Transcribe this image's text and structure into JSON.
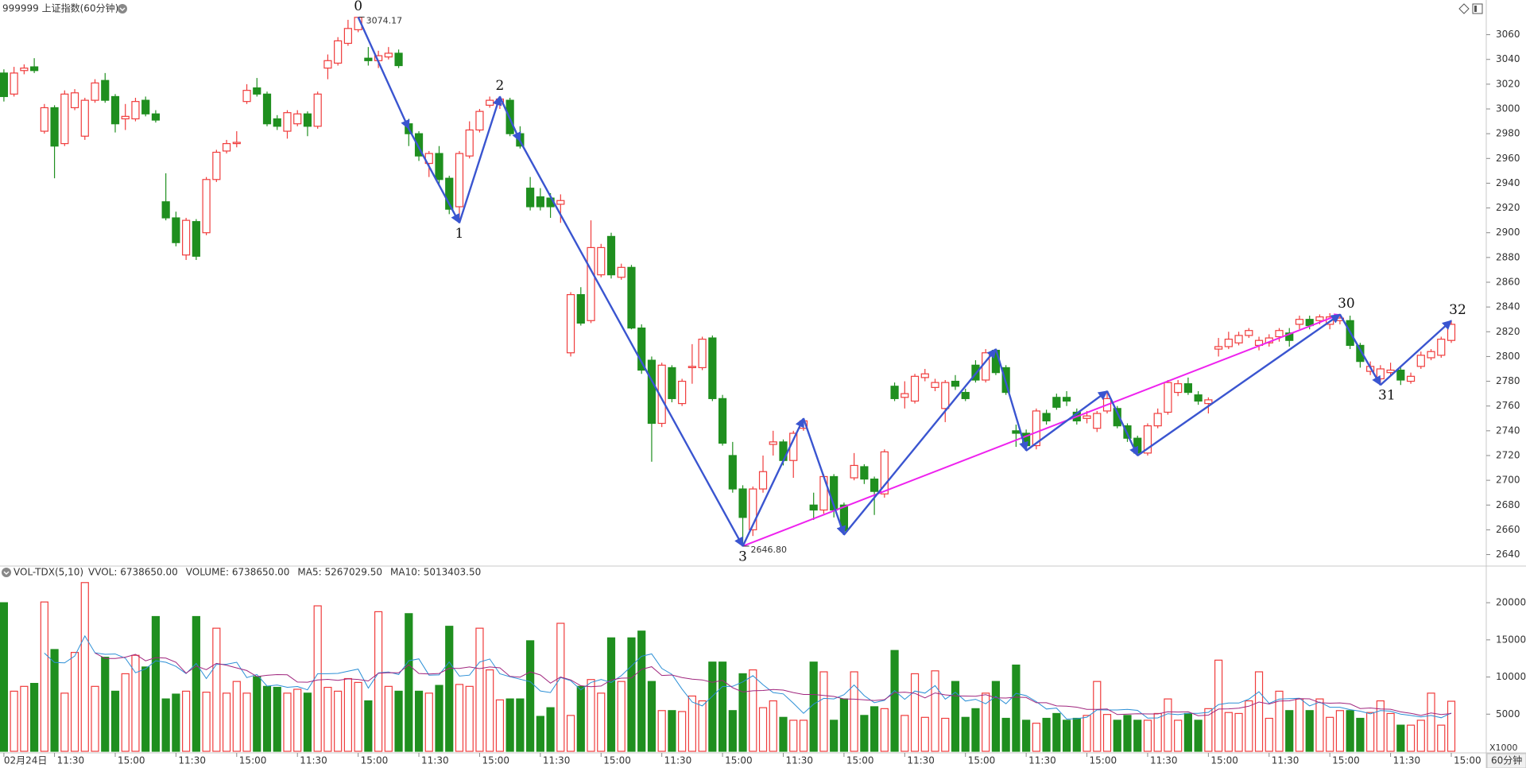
{
  "chart_data": [
    {
      "type": "candlestick",
      "title": "999999 上证指数(60分钟)",
      "up_color": "#f03c3c",
      "down_color": "#1f8f1f",
      "ylim": [
        2632,
        3088
      ],
      "yticks": [
        2640,
        2660,
        2680,
        2700,
        2720,
        2740,
        2760,
        2780,
        2800,
        2820,
        2840,
        2860,
        2880,
        2900,
        2920,
        2940,
        2960,
        2980,
        3000,
        3020,
        3040,
        3060
      ],
      "open": [
        3029,
        3012,
        3031,
        3034,
        2982,
        3001,
        2972,
        3001,
        2978,
        3007,
        3023,
        3010,
        2992,
        2992,
        3007,
        2996,
        2925,
        2912,
        2882,
        2909,
        2900,
        2943,
        2966,
        2972,
        3006,
        3017,
        3012,
        2992,
        2982,
        2988,
        2996,
        2986,
        3033,
        3037,
        3053,
        3064,
        3041,
        3039,
        3042,
        3045,
        2988,
        2980,
        2956,
        2964,
        2944,
        2921,
        2962,
        2983,
        3003,
        3004,
        3007,
        2980,
        2936,
        2929,
        2928,
        2923,
        2803,
        2850,
        2829,
        2866,
        2897,
        2864,
        2872,
        2823,
        2797,
        2746,
        2791,
        2762,
        2791,
        2791,
        2815,
        2766,
        2720,
        2693,
        2660,
        2693,
        2729,
        2731,
        2716,
        2742,
        2680,
        2676,
        2703,
        2680,
        2702,
        2711,
        2701,
        2689,
        2776,
        2767,
        2764,
        2783,
        2775,
        2758,
        2780,
        2771,
        2793,
        2781,
        2805,
        2791,
        2740,
        2738,
        2728,
        2754,
        2767,
        2767,
        2755,
        2750,
        2742,
        2756,
        2758,
        2744,
        2734,
        2722,
        2744,
        2755,
        2771,
        2778,
        2769,
        2762,
        2806,
        2808,
        2811,
        2817,
        2809,
        2811,
        2816,
        2819,
        2826,
        2830,
        2829,
        2826,
        2829,
        2829,
        2809,
        2788,
        2782,
        2787,
        2789,
        2780,
        2792,
        2799,
        2801,
        2813
      ],
      "high": [
        3032,
        3034,
        3036,
        3041,
        3004,
        3003,
        3015,
        3016,
        3009,
        3024,
        3029,
        3012,
        3004,
        3009,
        3010,
        2999,
        2948,
        2917,
        2912,
        2911,
        2945,
        2967,
        2975,
        2982,
        3020,
        3025,
        3014,
        2995,
        2999,
        2999,
        2998,
        3014,
        3044,
        3058,
        3072,
        3074.17,
        3050,
        3047,
        3050,
        3048,
        2992,
        2982,
        2966,
        2970,
        2946,
        2966,
        2990,
        3000,
        3010,
        3010,
        3009,
        2986,
        2945,
        2936,
        2932,
        2931,
        2852,
        2856,
        2910,
        2891,
        2900,
        2875,
        2874,
        2826,
        2800,
        2795,
        2793,
        2782,
        2810,
        2816,
        2817,
        2769,
        2731,
        2696,
        2695,
        2720,
        2740,
        2733,
        2740,
        2750,
        2690,
        2705,
        2705,
        2682,
        2722,
        2713,
        2703,
        2725,
        2779,
        2780,
        2786,
        2790,
        2782,
        2781,
        2785,
        2774,
        2797,
        2806,
        2806,
        2793,
        2745,
        2741,
        2758,
        2757,
        2770,
        2772,
        2758,
        2756,
        2756,
        2772,
        2760,
        2746,
        2736,
        2746,
        2758,
        2781,
        2781,
        2783,
        2772,
        2767,
        2815,
        2820,
        2820,
        2823,
        2816,
        2818,
        2823,
        2823,
        2833,
        2833,
        2834,
        2835,
        2834,
        2833,
        2811,
        2796,
        2793,
        2795,
        2791,
        2787,
        2804,
        2806,
        2816,
        2829
      ],
      "low": [
        3006,
        3010,
        3028,
        3029,
        2980,
        2944,
        2970,
        2999,
        2975,
        3005,
        3005,
        2981,
        2983,
        2990,
        2994,
        2989,
        2910,
        2889,
        2878,
        2878,
        2898,
        2941,
        2964,
        2969,
        3004,
        3010,
        2986,
        2983,
        2976,
        2986,
        2978,
        2984,
        3024,
        3035,
        3051,
        3062,
        3035,
        3033,
        3040,
        3033,
        2970,
        2958,
        2945,
        2938,
        2915,
        2908,
        2960,
        2981,
        3001,
        3000,
        2978,
        2968,
        2918,
        2918,
        2912,
        2908,
        2800,
        2825,
        2827,
        2864,
        2863,
        2862,
        2822,
        2786,
        2715,
        2743,
        2763,
        2760,
        2778,
        2789,
        2764,
        2728,
        2690,
        2646.8,
        2655,
        2690,
        2720,
        2712,
        2702,
        2740,
        2668,
        2673,
        2670,
        2656,
        2700,
        2697,
        2672,
        2686,
        2764,
        2758,
        2762,
        2780,
        2772,
        2747,
        2773,
        2764,
        2779,
        2779,
        2785,
        2769,
        2727,
        2724,
        2725,
        2745,
        2757,
        2760,
        2745,
        2746,
        2739,
        2754,
        2742,
        2731,
        2720,
        2720,
        2742,
        2753,
        2768,
        2769,
        2761,
        2754,
        2800,
        2806,
        2809,
        2815,
        2805,
        2808,
        2812,
        2808,
        2822,
        2822,
        2826,
        2822,
        2826,
        2806,
        2791,
        2785,
        2777,
        2785,
        2777,
        2778,
        2790,
        2797,
        2799,
        2811
      ],
      "close": [
        3010,
        3029,
        3033,
        3031,
        3001,
        2970,
        3012,
        3013,
        3007,
        3021,
        3007,
        2988,
        2994,
        3006,
        2996,
        2991,
        2912,
        2892,
        2910,
        2881,
        2943,
        2965,
        2972,
        2973,
        3015,
        3012,
        2988,
        2986,
        2997,
        2996,
        2986,
        3012,
        3039,
        3055,
        3065,
        3074,
        3039,
        3043,
        3045,
        3035,
        2980,
        2962,
        2964,
        2943,
        2919,
        2964,
        2983,
        2998,
        3007,
        3008,
        2980,
        2970,
        2921,
        2921,
        2921,
        2926,
        2850,
        2827,
        2888,
        2888,
        2866,
        2872,
        2823,
        2789,
        2746,
        2793,
        2766,
        2780,
        2792,
        2814,
        2766,
        2730,
        2693,
        2670,
        2693,
        2707,
        2731,
        2716,
        2738,
        2748,
        2676,
        2703,
        2676,
        2659,
        2712,
        2701,
        2691,
        2723,
        2766,
        2770,
        2784,
        2786,
        2779,
        2779,
        2776,
        2766,
        2781,
        2803,
        2787,
        2771,
        2738,
        2728,
        2756,
        2748,
        2759,
        2764,
        2748,
        2752,
        2754,
        2766,
        2744,
        2734,
        2722,
        2744,
        2754,
        2779,
        2778,
        2771,
        2764,
        2765,
        2808,
        2814,
        2817,
        2821,
        2813,
        2815,
        2821,
        2813,
        2830,
        2825,
        2832,
        2832,
        2831,
        2809,
        2796,
        2792,
        2790,
        2789,
        2781,
        2784,
        2801,
        2804,
        2814,
        2826
      ],
      "annotations": {
        "waves": {
          "color": "#3a55d0",
          "points": [
            {
              "x": 35,
              "value": 3074.17,
              "label": "0"
            },
            {
              "x": 40,
              "value": 2984
            },
            {
              "x": 45,
              "value": 2908,
              "label": "1"
            },
            {
              "x": 49,
              "value": 3010,
              "label": "2"
            },
            {
              "x": 51,
              "value": 2974
            },
            {
              "x": 73,
              "value": 2646.8,
              "label": "3"
            },
            {
              "x": 79,
              "value": 2750
            },
            {
              "x": 83,
              "value": 2656
            },
            {
              "x": 98,
              "value": 2806
            },
            {
              "x": 101,
              "value": 2724
            },
            {
              "x": 109,
              "value": 2772
            },
            {
              "x": 112,
              "value": 2720
            },
            {
              "x": 132,
              "value": 2834,
              "label": "30"
            },
            {
              "x": 136,
              "value": 2777,
              "label": "31"
            },
            {
              "x": 143,
              "value": 2829,
              "label": "32"
            }
          ]
        },
        "trend_line": {
          "color": "#ee22ee",
          "from": {
            "x": 73,
            "value": 2646.8
          },
          "to": {
            "x": 132,
            "value": 2834
          }
        },
        "price_labels": [
          {
            "x": 35,
            "value": 3074.17,
            "label": "3074.17"
          },
          {
            "x": 73,
            "value": 2646.8,
            "label": "2646.80"
          }
        ]
      }
    },
    {
      "type": "bar",
      "indicator_texts": [
        {
          "text": "VOL-TDX(5,10)",
          "color": "#333333"
        },
        {
          "text": "VVOL: 6738650.00",
          "color": "#333333"
        },
        {
          "text": "VOLUME: 6738650.00",
          "color": "#1e7fd0"
        },
        {
          "text": "MA5: 5267029.50",
          "color": "#1e7fd0"
        },
        {
          "text": "MA10: 5013403.50",
          "color": "#a0267e"
        }
      ],
      "moving_averages": [
        {
          "period": 5,
          "color": "#2b8fd6"
        },
        {
          "period": 10,
          "color": "#a0267e"
        }
      ],
      "unit": "X1000",
      "period_label": "60分钟",
      "ylim": [
        0,
        22900
      ],
      "yticks": [
        5000,
        10000,
        15000,
        20000
      ],
      "categories": [
        "02月24日",
        null,
        null,
        null,
        null,
        "11:30",
        null,
        null,
        null,
        null,
        null,
        "15:00",
        null,
        null,
        null,
        null,
        null,
        "11:30",
        null,
        null,
        null,
        null,
        null,
        "15:00",
        null,
        null,
        null,
        null,
        null,
        "11:30",
        null,
        null,
        null,
        null,
        null,
        "15:00",
        null,
        null,
        null,
        null,
        null,
        "11:30",
        null,
        null,
        null,
        null,
        null,
        "15:00",
        null,
        null,
        null,
        null,
        null,
        "11:30",
        null,
        null,
        null,
        null,
        null,
        "15:00",
        null,
        null,
        null,
        null,
        null,
        "11:30",
        null,
        null,
        null,
        null,
        null,
        "15:00",
        null,
        null,
        null,
        null,
        null,
        "11:30",
        null,
        null,
        null,
        null,
        null,
        "15:00",
        null,
        null,
        null,
        null,
        null,
        "11:30",
        null,
        null,
        null,
        null,
        null,
        "15:00",
        null,
        null,
        null,
        null,
        null,
        "11:30",
        null,
        null,
        null,
        null,
        null,
        "15:00",
        null,
        null,
        null,
        null,
        null,
        "11:30",
        null,
        null,
        null,
        null,
        null,
        "15:00",
        null,
        null,
        null,
        null,
        null,
        "11:30",
        null,
        null,
        null,
        null,
        null,
        "15:00",
        null,
        null,
        null,
        null,
        null,
        "11:30",
        null,
        null,
        null,
        null,
        null,
        "15:00"
      ],
      "values": [
        20000,
        8090,
        8740,
        9140,
        20100,
        13700,
        7830,
        13310,
        22710,
        8740,
        12660,
        8090,
        10440,
        12920,
        11350,
        18140,
        7050,
        7700,
        8090,
        18140,
        7960,
        16570,
        7830,
        9400,
        7830,
        10050,
        8740,
        8610,
        7830,
        8350,
        7830,
        19580,
        8610,
        8090,
        9790,
        9270,
        6790,
        18790,
        8740,
        8090,
        18530,
        8090,
        7830,
        8870,
        16830,
        9000,
        8740,
        16570,
        10960,
        6920,
        7050,
        7050,
        14880,
        4700,
        5870,
        17230,
        4830,
        8740,
        9660,
        7830,
        15270,
        9400,
        15270,
        16180,
        9400,
        5480,
        5480,
        5350,
        7440,
        6790,
        12010,
        12010,
        5480,
        10440,
        10960,
        5870,
        6790,
        4570,
        4180,
        4180,
        12010,
        10700,
        4180,
        7050,
        10700,
        4830,
        6000,
        5740,
        13570,
        4830,
        10440,
        4570,
        10830,
        4440,
        9400,
        4570,
        5740,
        7830,
        9400,
        4440,
        11610,
        4180,
        3780,
        4440,
        5090,
        4180,
        4440,
        4830,
        9400,
        4960,
        4180,
        4830,
        4180,
        4180,
        5090,
        7050,
        4180,
        5090,
        4180,
        5740,
        12270,
        5220,
        5090,
        6790,
        10700,
        4440,
        8090,
        5480,
        7050,
        5480,
        7050,
        4570,
        5480,
        5480,
        4440,
        5220,
        6790,
        5090,
        3520,
        3520,
        4180,
        7830,
        3520,
        6738.65
      ]
    }
  ]
}
